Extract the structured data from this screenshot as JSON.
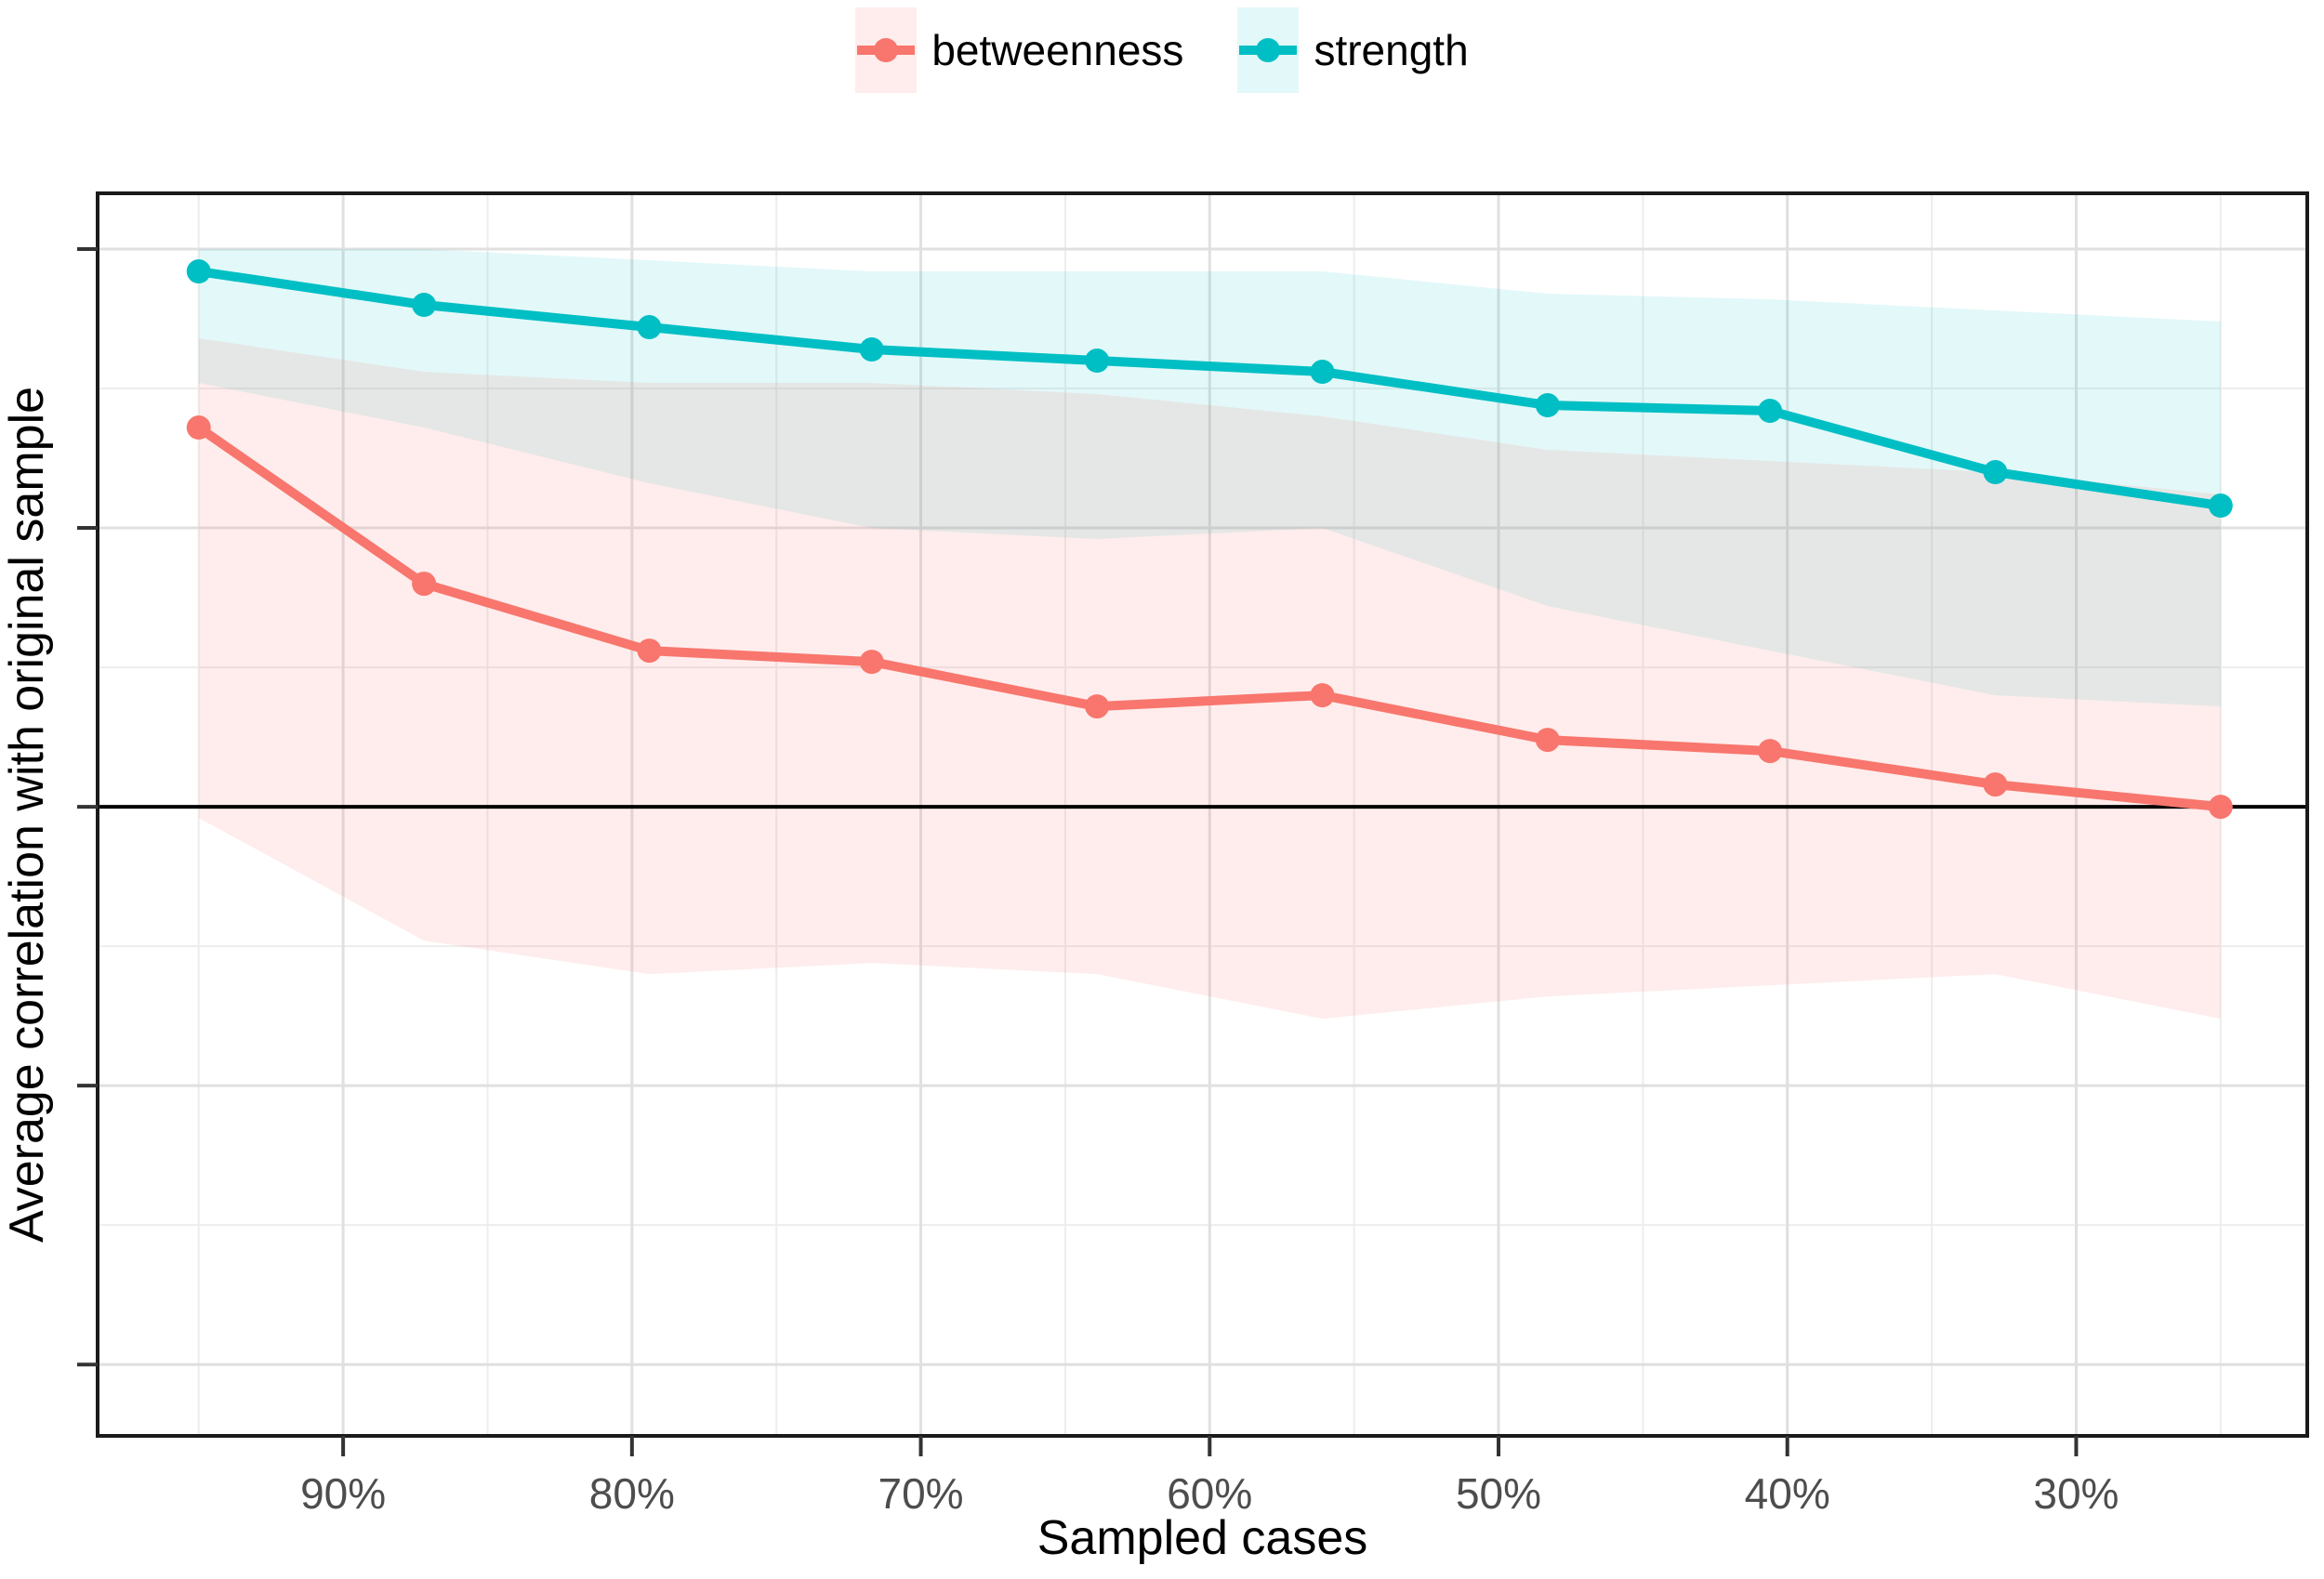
{
  "legend": {
    "items": [
      {
        "label": "betweenness",
        "series": "betweenness"
      },
      {
        "label": "strength",
        "series": "strength"
      }
    ]
  },
  "axes": {
    "x_label": "Sampled cases",
    "y_label": "Average correlation with original sample"
  },
  "colors": {
    "betweenness": "#F8766D",
    "strength": "#00BFC4",
    "betweenness_fill": "rgba(248,118,109,0.13)",
    "strength_fill": "rgba(0,191,196,0.11)",
    "grid_major": "#E0E0E0",
    "grid_minor": "#EDEDED",
    "axis_text": "#4D4D4D",
    "panel_border": "#1A1A1A",
    "reference_line": "#000000"
  },
  "chart_data": {
    "type": "line",
    "title": "",
    "xlabel": "Sampled cases",
    "ylabel": "Average correlation with original sample",
    "x": [
      95,
      87.2,
      79.4,
      71.7,
      63.9,
      56.1,
      48.3,
      40.6,
      32.8,
      25
    ],
    "x_tick_labels": [
      "90%",
      "80%",
      "70%",
      "60%",
      "50%",
      "40%",
      "30%"
    ],
    "x_breaks": [
      90,
      80,
      70,
      60,
      50,
      40,
      30
    ],
    "x_minor_breaks": [
      95,
      85,
      75,
      65,
      55,
      45,
      35,
      25
    ],
    "y_breaks": [
      1.0,
      0.75,
      0.5,
      0.25,
      0.0
    ],
    "y_minor_breaks": [
      0.875,
      0.625,
      0.375,
      0.125
    ],
    "y_tick_labels": [],
    "xlim": [
      98.5,
      22.0
    ],
    "ylim": [
      -0.064,
      1.05
    ],
    "x_reversed": true,
    "grid": true,
    "legend_position": "top",
    "reference_hline_y": 0.5,
    "series": [
      {
        "name": "betweenness",
        "values": [
          0.84,
          0.7,
          0.64,
          0.63,
          0.59,
          0.6,
          0.56,
          0.55,
          0.52,
          0.5
        ],
        "band_low": [
          0.49,
          0.38,
          0.35,
          0.36,
          0.35,
          0.31,
          0.33,
          0.34,
          0.35,
          0.31
        ],
        "band_high": [
          0.92,
          0.89,
          0.88,
          0.88,
          0.87,
          0.85,
          0.82,
          0.81,
          0.8,
          0.78
        ]
      },
      {
        "name": "strength",
        "values": [
          0.98,
          0.95,
          0.93,
          0.91,
          0.9,
          0.89,
          0.86,
          0.855,
          0.8,
          0.77
        ],
        "band_low": [
          0.88,
          0.84,
          0.79,
          0.75,
          0.74,
          0.75,
          0.68,
          0.64,
          0.6,
          0.59
        ],
        "band_high": [
          1.0,
          1.0,
          0.99,
          0.98,
          0.98,
          0.98,
          0.96,
          0.955,
          0.945,
          0.935
        ]
      }
    ]
  }
}
